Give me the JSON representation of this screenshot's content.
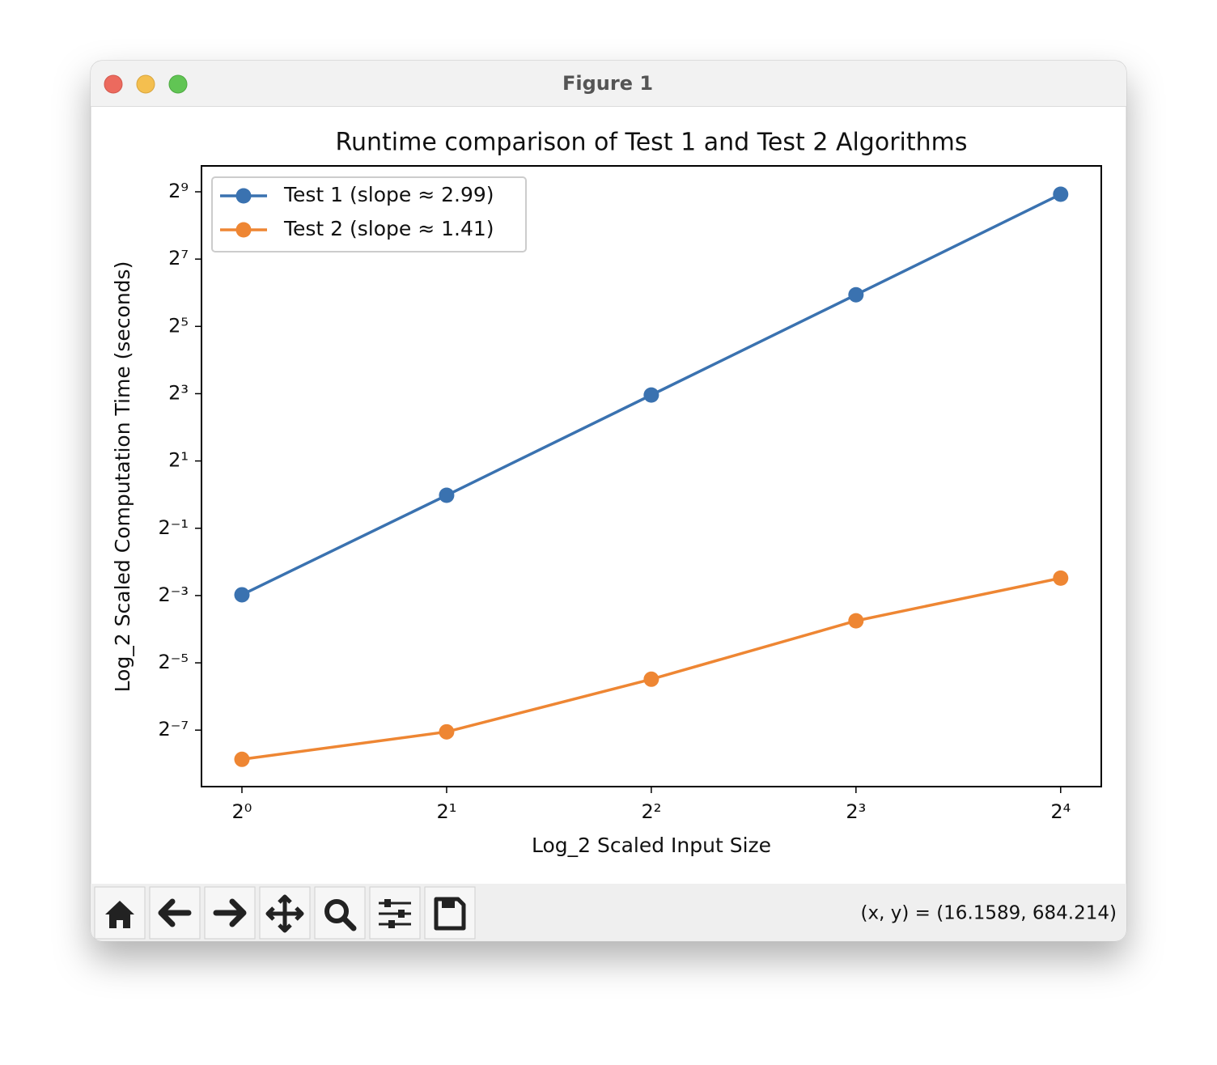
{
  "window": {
    "title": "Figure 1",
    "status": "(x, y) = (16.1589, 684.214)"
  },
  "chart_data": {
    "type": "line",
    "title": "Runtime comparison of Test 1 and Test 2 Algorithms",
    "x_label": "Log_2 Scaled Input Size",
    "y_label": "Log_2 Scaled Computation Time (seconds)",
    "xscale": "log",
    "yscale": "log",
    "x": [
      1,
      2,
      4,
      8,
      16
    ],
    "xlim": [
      0.872,
      18.36
    ],
    "ylim": [
      0.00244,
      873
    ],
    "xticks": [
      {
        "value": 1,
        "label": "2⁰"
      },
      {
        "value": 2,
        "label": "2¹"
      },
      {
        "value": 4,
        "label": "2²"
      },
      {
        "value": 8,
        "label": "2³"
      },
      {
        "value": 16,
        "label": "2⁴"
      }
    ],
    "yticks": [
      {
        "value": 0.0078125,
        "label": "2⁻⁷"
      },
      {
        "value": 0.03125,
        "label": "2⁻⁵"
      },
      {
        "value": 0.125,
        "label": "2⁻³"
      },
      {
        "value": 0.5,
        "label": "2⁻¹"
      },
      {
        "value": 2,
        "label": "2¹"
      },
      {
        "value": 8,
        "label": "2³"
      },
      {
        "value": 32,
        "label": "2⁵"
      },
      {
        "value": 128,
        "label": "2⁷"
      },
      {
        "value": 512,
        "label": "2⁹"
      }
    ],
    "legend": "upper left",
    "series": [
      {
        "name": "Test 1 (slope ≈ 2.99)",
        "color": "#3a72b0",
        "values": [
          0.127,
          0.986,
          7.78,
          61.4,
          487
        ]
      },
      {
        "name": "Test 2 (slope ≈ 1.41)",
        "color": "#ee8633",
        "values": [
          0.00428,
          0.00754,
          0.0223,
          0.0743,
          0.179
        ]
      }
    ]
  }
}
